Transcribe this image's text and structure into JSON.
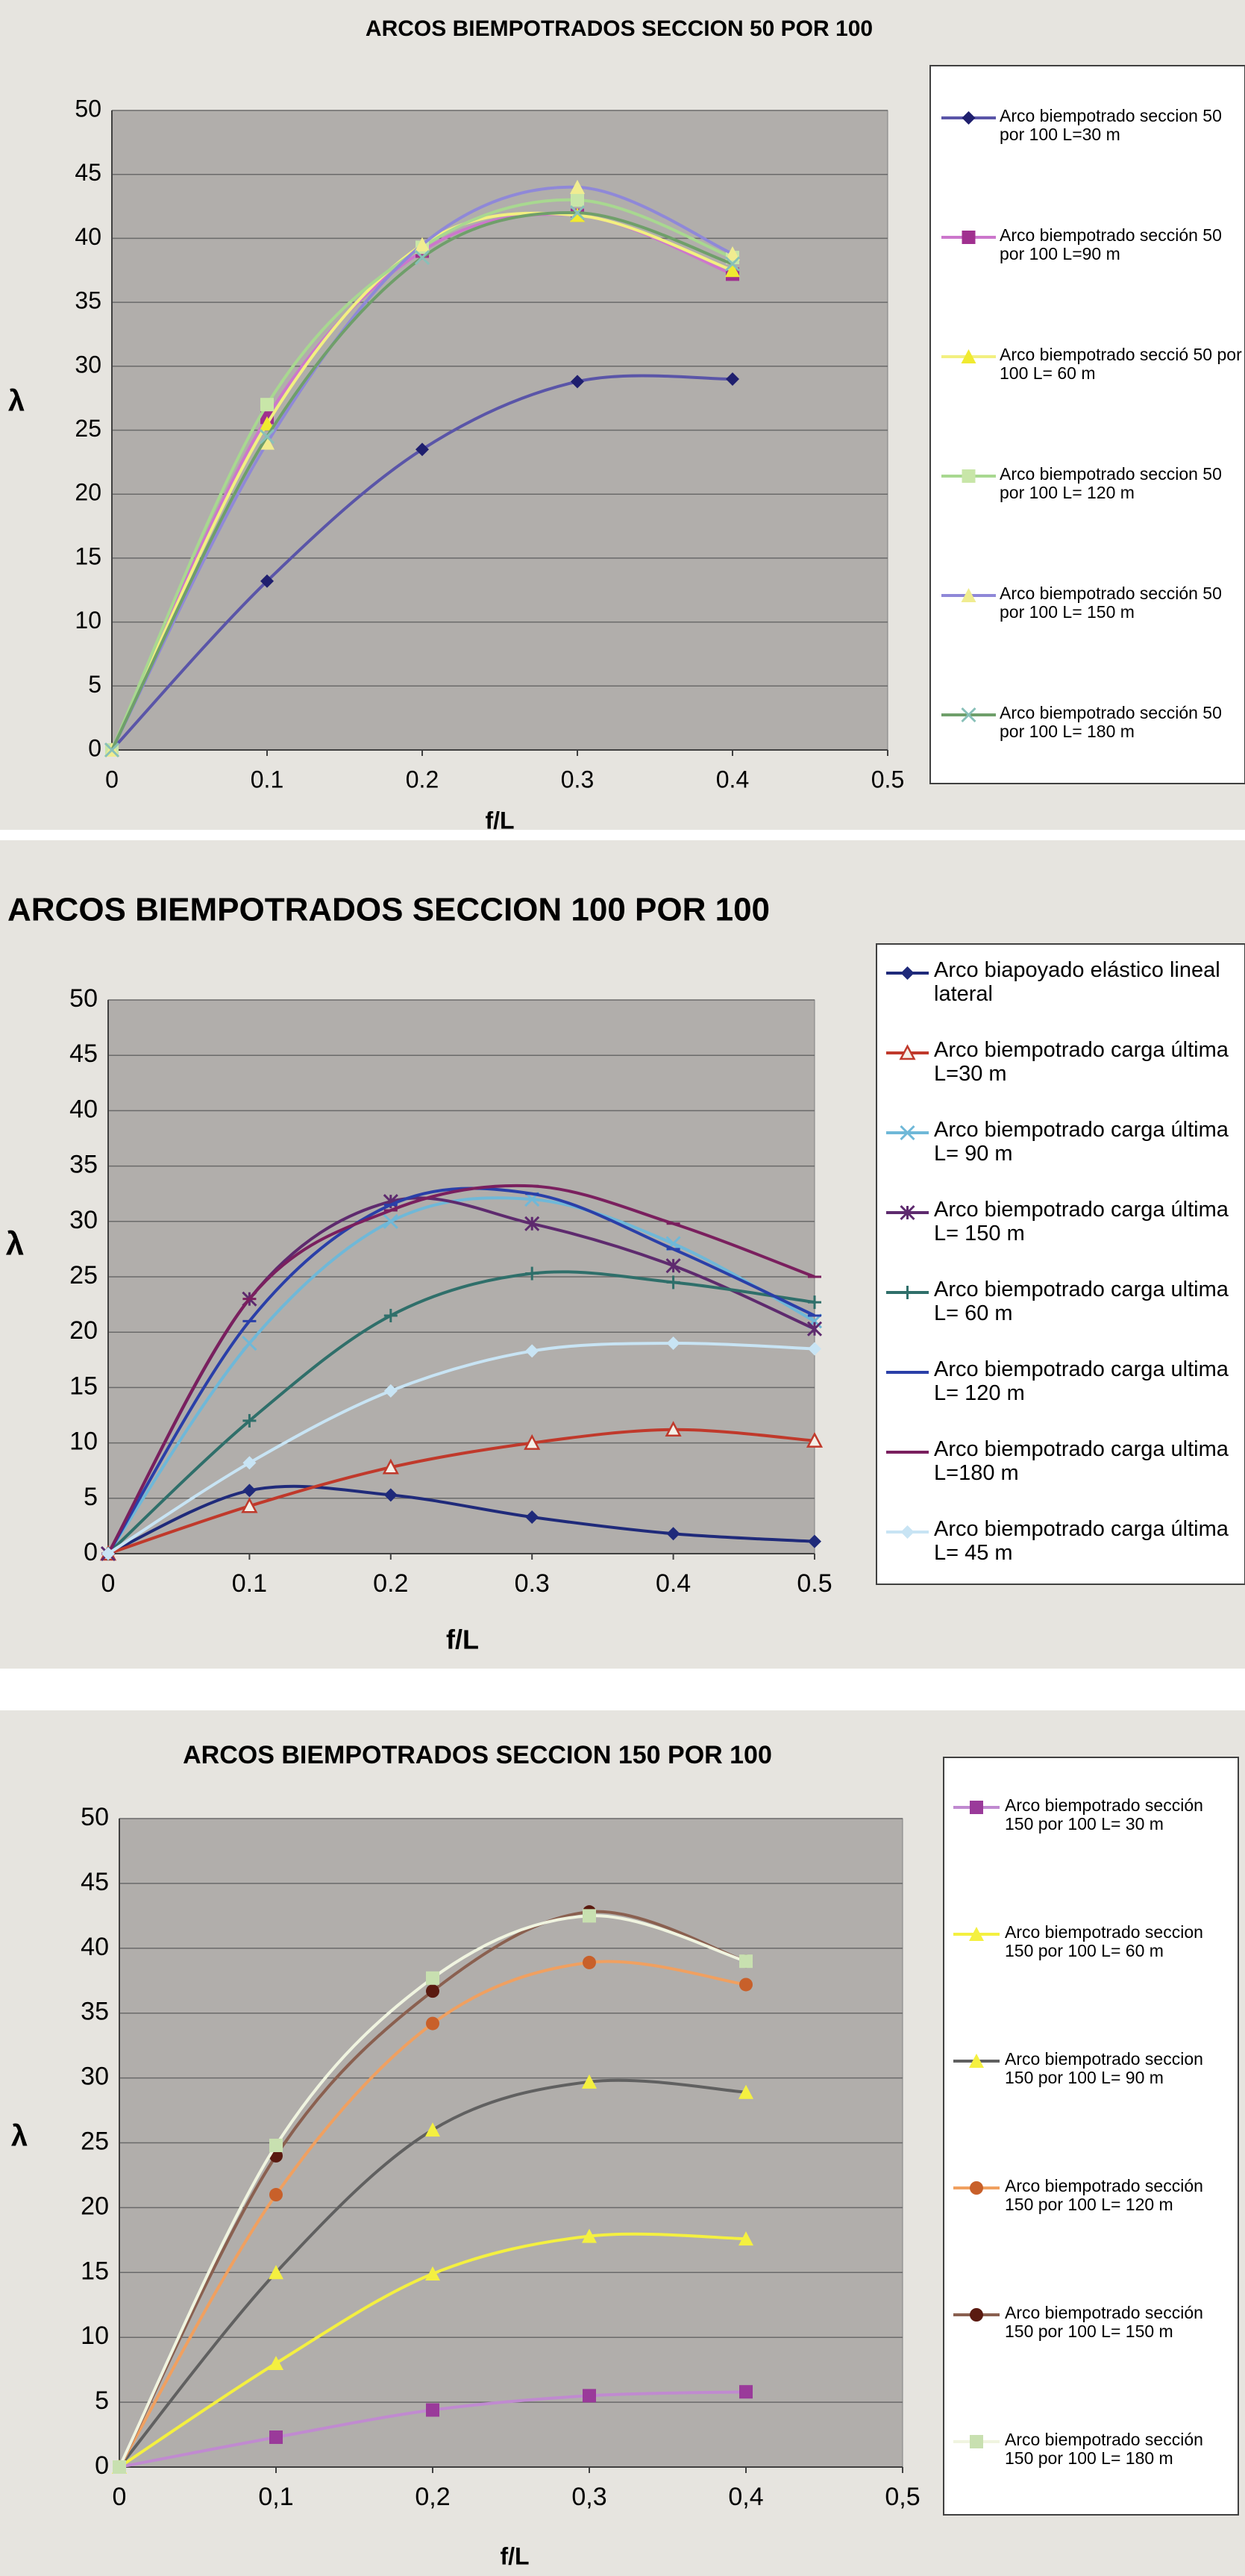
{
  "chart_data": [
    {
      "type": "line",
      "title": "ARCOS BIEMPOTRADOS SECCION 50 POR 100",
      "y_label": "λ",
      "x_label": "f/L",
      "x": [
        0,
        0.1,
        0.2,
        0.3,
        0.4
      ],
      "xlim": [
        0,
        0.5
      ],
      "xticks": [
        0,
        0.1,
        0.2,
        0.3,
        0.4,
        0.5
      ],
      "ylim": [
        0,
        50
      ],
      "yticks": [
        0,
        5,
        10,
        15,
        20,
        25,
        30,
        35,
        40,
        45,
        50
      ],
      "grid": true,
      "series": [
        {
          "name": "Arco biempotrado seccion 50 por 100 L=30 m",
          "color": "#5a55a8",
          "marker": "diamond",
          "marker_color": "#1f1f6e",
          "values": [
            0,
            13.2,
            23.5,
            28.8,
            29
          ]
        },
        {
          "name": "Arco biempotrado sección 50 por 100 L=90 m",
          "color": "#cc77cc",
          "marker": "square",
          "marker_color": "#a0308f",
          "values": [
            0,
            26,
            39,
            41.8,
            37.2
          ]
        },
        {
          "name": "Arco biempotrado secció 50 por 100 L= 60 m",
          "color": "#f2f080",
          "marker": "triangle",
          "marker_color": "#f0ea30",
          "values": [
            0,
            25.5,
            39.5,
            41.8,
            37.5
          ]
        },
        {
          "name": "Arco biempotrado seccion 50 por 100 L= 120 m",
          "color": "#a8d890",
          "marker": "square",
          "marker_color": "#c8e6a8",
          "values": [
            0,
            27,
            39.3,
            43,
            38.5
          ]
        },
        {
          "name": "Arco biempotrado sección 50 por 100 L= 150 m",
          "color": "#8f88d8",
          "marker": "triangle",
          "marker_color": "#f0ec90",
          "values": [
            0,
            24,
            39.5,
            44,
            38.8
          ]
        },
        {
          "name": "Arco biempotrado sección 50 por 100 L= 180 m",
          "color": "#6f9f6a",
          "marker": "x",
          "marker_color": "#88c0b8",
          "values": [
            0,
            24.5,
            38.5,
            42,
            38
          ]
        }
      ]
    },
    {
      "type": "line",
      "title": "ARCOS BIEMPOTRADOS SECCION 100 POR 100",
      "y_label": "λ",
      "x_label": "f/L",
      "x": [
        0,
        0.1,
        0.2,
        0.3,
        0.4,
        0.5
      ],
      "xlim": [
        0,
        0.5
      ],
      "xticks": [
        0,
        0.1,
        0.2,
        0.3,
        0.4,
        0.5
      ],
      "ylim": [
        0,
        50
      ],
      "yticks": [
        0,
        5,
        10,
        15,
        20,
        25,
        30,
        35,
        40,
        45,
        50
      ],
      "grid": true,
      "series": [
        {
          "name": "Arco biapoyado elástico lineal lateral",
          "color": "#1f2a7a",
          "marker": "diamond",
          "values": [
            0,
            5.7,
            5.3,
            3.3,
            1.8,
            1.1
          ]
        },
        {
          "name": "Arco biempotrado carga última L=30 m",
          "color": "#c0392b",
          "marker": "triangle-open",
          "values": [
            0,
            4.3,
            7.8,
            10,
            11.2,
            10.2
          ]
        },
        {
          "name": "Arco biempotrado carga última L= 90 m",
          "color": "#6fb8d8",
          "marker": "x",
          "values": [
            0,
            19,
            30,
            32,
            28,
            21
          ]
        },
        {
          "name": "Arco biempotrado carga última L= 150 m",
          "color": "#5e2a6e",
          "marker": "asterisk",
          "values": [
            0,
            23,
            31.8,
            29.8,
            26,
            20.3
          ]
        },
        {
          "name": "Arco biempotrado carga ultima L= 60 m",
          "color": "#2f6f6a",
          "marker": "plus",
          "values": [
            0,
            12,
            21.5,
            25.3,
            24.5,
            22.7
          ]
        },
        {
          "name": "Arco biempotrado carga ultima L= 120 m",
          "color": "#2a3fa8",
          "marker": "dash",
          "values": [
            0,
            21,
            31.5,
            32.5,
            27.5,
            21.5
          ]
        },
        {
          "name": "Arco biempotrado carga ultima L=180 m",
          "color": "#7a1f5e",
          "marker": "dash",
          "values": [
            0,
            23,
            31,
            33.2,
            29.8,
            25
          ]
        },
        {
          "name": "Arco biempotrado carga última L= 45 m",
          "color": "#c8e4f4",
          "marker": "diamond",
          "values": [
            0,
            8.2,
            14.7,
            18.3,
            19,
            18.5
          ]
        }
      ]
    },
    {
      "type": "line",
      "title": "ARCOS BIEMPOTRADOS SECCION 150 POR 100",
      "y_label": "λ",
      "x_label": "f/L",
      "x": [
        0,
        0.1,
        0.2,
        0.3,
        0.4
      ],
      "xlim": [
        0,
        0.5
      ],
      "xticks": [
        0,
        {
          "value": 0.1,
          "label": "0,1"
        },
        {
          "value": 0.2,
          "label": "0,2"
        },
        {
          "value": 0.3,
          "label": "0,3"
        },
        {
          "value": 0.4,
          "label": "0,4"
        },
        {
          "value": 0.5,
          "label": "0,5"
        }
      ],
      "ylim": [
        0,
        50
      ],
      "yticks": [
        0,
        5,
        10,
        15,
        20,
        25,
        30,
        35,
        40,
        45,
        50
      ],
      "grid": true,
      "series": [
        {
          "name": "Arco biempotrado sección 150 por 100 L= 30 m",
          "color": "#c08ad0",
          "marker": "square",
          "marker_color": "#9a3a9a",
          "values": [
            0,
            2.3,
            4.4,
            5.5,
            5.8
          ]
        },
        {
          "name": "Arco biempotrado seccion 150 por 100 L= 60 m",
          "color": "#f4f040",
          "marker": "triangle",
          "marker_color": "#f4f040",
          "values": [
            0,
            8,
            14.9,
            17.8,
            17.6
          ]
        },
        {
          "name": "Arco biempotrado seccion 150 por 100 L= 90 m",
          "color": "#606060",
          "marker": "triangle",
          "marker_color": "#f4f040",
          "values": [
            0,
            15,
            26,
            29.7,
            28.9
          ]
        },
        {
          "name": "Arco biempotrado sección 150 por 100 L= 120 m",
          "color": "#f0a060",
          "marker": "circle",
          "marker_color": "#c8602a",
          "values": [
            0,
            21,
            34.2,
            38.9,
            37.2
          ]
        },
        {
          "name": "Arco biempotrado sección 150 por 100 L= 150 m",
          "color": "#8a6050",
          "marker": "circle",
          "marker_color": "#5a1a10",
          "values": [
            0,
            24,
            36.7,
            42.8,
            39
          ]
        },
        {
          "name": "Arco biempotrado sección 150 por 100 L= 180 m",
          "color": "#f0f4e0",
          "marker": "square",
          "marker_color": "#c8e0b0",
          "values": [
            0,
            24.8,
            37.7,
            42.5,
            39
          ]
        }
      ]
    }
  ]
}
